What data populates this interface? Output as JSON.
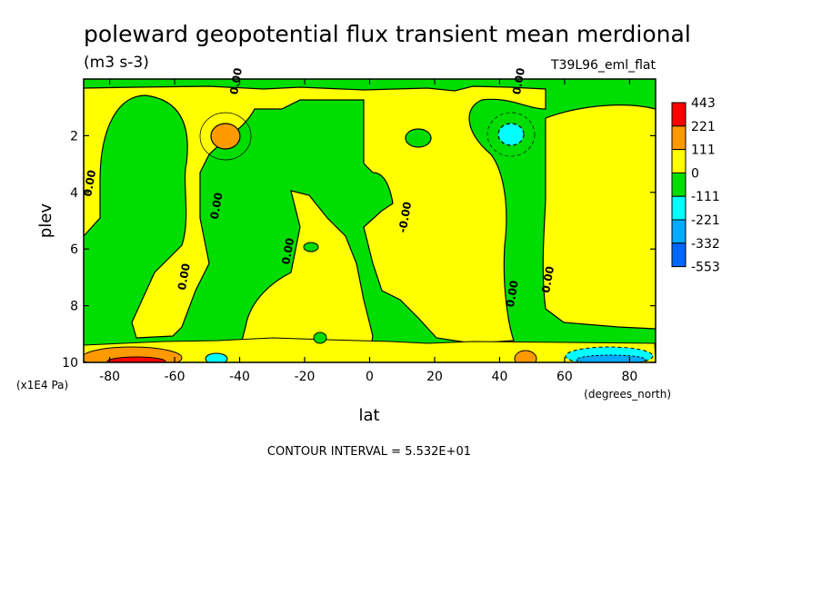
{
  "chart_data": {
    "type": "heatmap",
    "title": "poleward geopotential flux transient mean merdional",
    "units": "(m3 s-3)",
    "run_id": "T39L96_eml_flat",
    "xlabel": "lat",
    "x_units": "(degrees_north)",
    "ylabel": "plev",
    "y_units": "(x1E4 Pa)",
    "xlim": [
      -88,
      88
    ],
    "ylim": [
      10,
      0
    ],
    "x_ticks": [
      {
        "value": -80,
        "label": "-80"
      },
      {
        "value": -60,
        "label": "-60"
      },
      {
        "value": -40,
        "label": "-40"
      },
      {
        "value": -20,
        "label": "-20"
      },
      {
        "value": 0,
        "label": "0"
      },
      {
        "value": 20,
        "label": "20"
      },
      {
        "value": 40,
        "label": "40"
      },
      {
        "value": 60,
        "label": "60"
      },
      {
        "value": 80,
        "label": "80"
      }
    ],
    "y_ticks": [
      {
        "value": 2,
        "label": "2"
      },
      {
        "value": 4,
        "label": "4"
      },
      {
        "value": 6,
        "label": "6"
      },
      {
        "value": 8,
        "label": "8"
      },
      {
        "value": 10,
        "label": "10"
      }
    ],
    "contour_interval_text": "CONTOUR INTERVAL = 5.532E+01",
    "legend": {
      "placement": "right",
      "levels": [
        {
          "label": "443",
          "color": "#ff0000"
        },
        {
          "label": "221",
          "color": "#ff9900"
        },
        {
          "label": "111",
          "color": "#ffff00"
        },
        {
          "label": "0",
          "color": "#00dd00"
        },
        {
          "label": "-111",
          "color": "#00ffff"
        },
        {
          "label": "-221",
          "color": "#00aaff"
        },
        {
          "label": "-332",
          "color": "#0066ff"
        },
        {
          "label": "-553",
          "color": ""
        }
      ],
      "box_colors": [
        "#ff0000",
        "#ff9900",
        "#ffff00",
        "#00dd00",
        "#00ffff",
        "#00aaff",
        "#0066ff"
      ]
    },
    "contour_labels": [
      {
        "text": "0.00",
        "lat": -85,
        "plev": 3.7
      },
      {
        "text": "0.00",
        "lat": -56,
        "plev": 7.0
      },
      {
        "text": "0.00",
        "lat": -46,
        "plev": 4.5
      },
      {
        "text": "0.00",
        "lat": -24,
        "plev": 6.1
      },
      {
        "text": "-0.00",
        "lat": 12,
        "plev": 4.9
      },
      {
        "text": "0.00",
        "lat": -40,
        "plev": 0.1
      },
      {
        "text": "0.00",
        "lat": 47,
        "plev": 0.1
      },
      {
        "text": "0.00",
        "lat": 45,
        "plev": 7.6
      },
      {
        "text": "0.00",
        "lat": 56,
        "plev": 7.1
      }
    ]
  }
}
